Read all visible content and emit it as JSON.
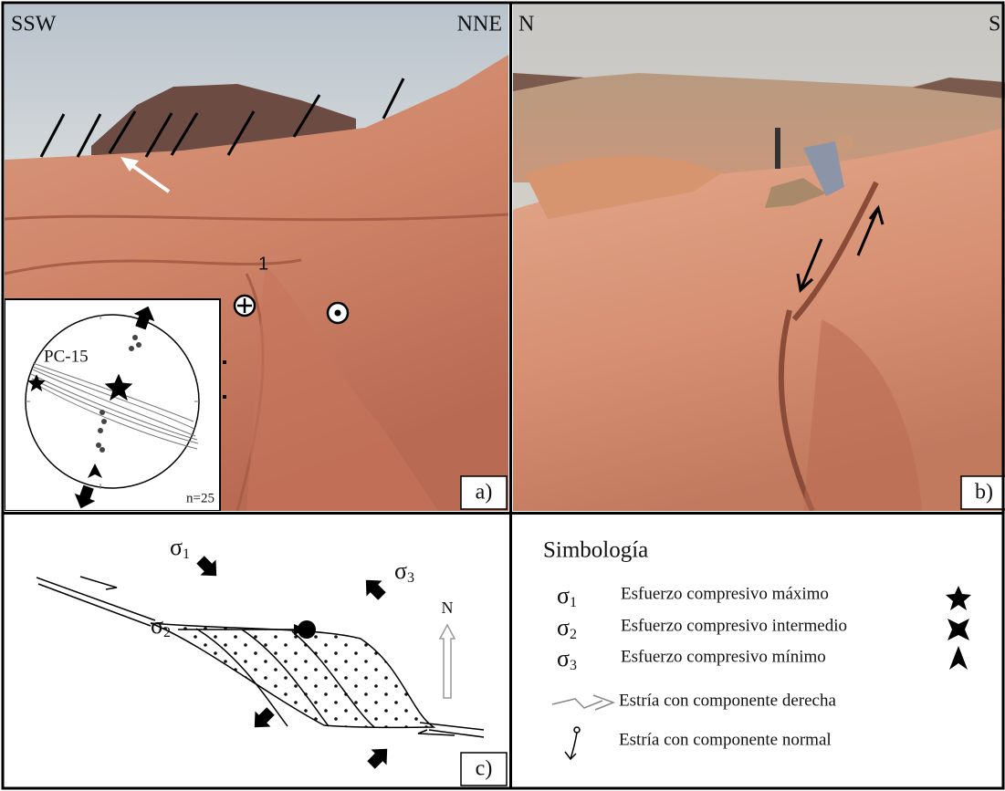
{
  "panel_a": {
    "left_label": "SSW",
    "right_label": "NNE",
    "marker": "1",
    "stereonet": {
      "label": "PC-15",
      "count": "n=25"
    },
    "tag": "a)"
  },
  "panel_b": {
    "left_label": "N",
    "right_label": "S",
    "tag": "b)"
  },
  "panel_c": {
    "sigma1": {
      "symbol": "σ",
      "sub": "1"
    },
    "sigma2": {
      "symbol": "σ",
      "sub": "2"
    },
    "sigma3": {
      "symbol": "σ",
      "sub": "3"
    },
    "north": "N",
    "tag": "c)"
  },
  "legend": {
    "title": "Simbología",
    "items": [
      {
        "symbol": "σ",
        "sub": "1",
        "text": "Esfuerzo compresivo máximo"
      },
      {
        "symbol": "σ",
        "sub": "2",
        "text": "Esfuerzo compresivo intermedio"
      },
      {
        "symbol": "σ",
        "sub": "3",
        "text": "Esfuerzo compresivo mínimo"
      },
      {
        "text": "Estría con componente derecha"
      },
      {
        "text": "Estría con componente normal"
      }
    ]
  }
}
